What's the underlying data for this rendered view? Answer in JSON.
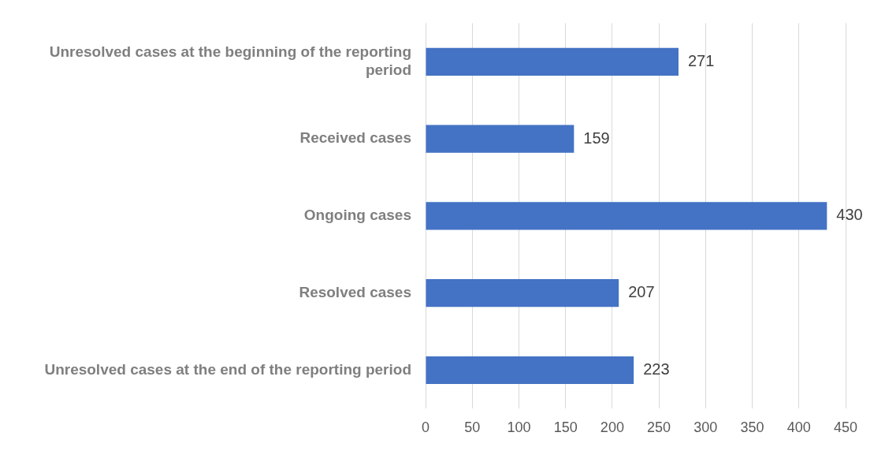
{
  "chart_data": {
    "type": "bar",
    "orientation": "horizontal",
    "categories": [
      "Unresolved cases at the beginning of the reporting period",
      "Received cases",
      "Ongoing cases",
      "Resolved cases",
      "Unresolved cases at the end of the reporting period"
    ],
    "values": [
      271,
      159,
      430,
      207,
      223
    ],
    "color": "#4472c4",
    "xlim": [
      0,
      450
    ],
    "xticks": [
      0,
      50,
      100,
      150,
      200,
      250,
      300,
      350,
      400,
      450
    ],
    "grid": "x",
    "data_labels": true
  }
}
